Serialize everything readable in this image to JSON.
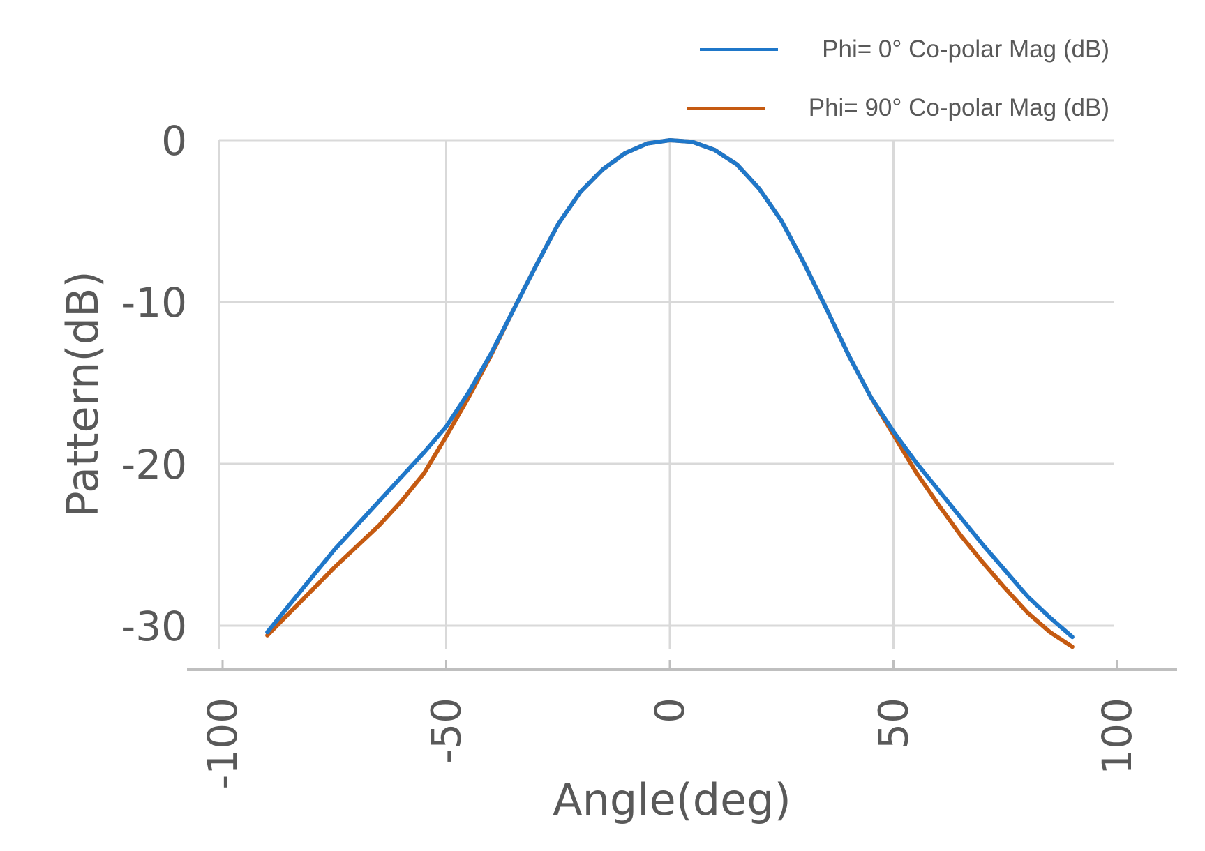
{
  "chart_data": {
    "type": "line",
    "title": "",
    "xlabel": "Angle(deg)",
    "ylabel": "Pattern(dB)",
    "x_ticks": [
      "-100",
      "-50",
      "0",
      "50",
      "100"
    ],
    "y_ticks": [
      "0",
      "-10",
      "-20",
      "-30"
    ],
    "xlim": [
      -100,
      100
    ],
    "ylim": [
      -30,
      0
    ],
    "grid": true,
    "legend_position": "top-right",
    "series": [
      {
        "name": "Phi= 0° Co-polar Mag (dB)",
        "color": "#1F77C9",
        "x": [
          -90,
          -85,
          -80,
          -75,
          -70,
          -65,
          -60,
          -55,
          -50,
          -45,
          -40,
          -35,
          -30,
          -25,
          -20,
          -15,
          -10,
          -5,
          0,
          5,
          10,
          15,
          20,
          25,
          30,
          35,
          40,
          45,
          50,
          55,
          60,
          65,
          70,
          75,
          80,
          85,
          90
        ],
        "y": [
          -30.4,
          -28.7,
          -27.0,
          -25.3,
          -23.8,
          -22.3,
          -20.8,
          -19.3,
          -17.7,
          -15.6,
          -13.2,
          -10.5,
          -7.8,
          -5.2,
          -3.2,
          -1.8,
          -0.8,
          -0.2,
          0.0,
          -0.1,
          -0.6,
          -1.5,
          -3.0,
          -5.0,
          -7.6,
          -10.4,
          -13.3,
          -15.9,
          -18.0,
          -19.9,
          -21.6,
          -23.3,
          -25.0,
          -26.6,
          -28.2,
          -29.5,
          -30.7
        ]
      },
      {
        "name": "Phi= 90° Co-polar Mag (dB)",
        "color": "#C55A11",
        "x": [
          -90,
          -85,
          -80,
          -75,
          -70,
          -65,
          -60,
          -55,
          -50,
          -45,
          -40,
          -35,
          -30,
          -25,
          -20,
          -15,
          -10,
          -5,
          0,
          5,
          10,
          15,
          20,
          25,
          30,
          35,
          40,
          45,
          50,
          55,
          60,
          65,
          70,
          75,
          80,
          85,
          90
        ],
        "y": [
          -30.6,
          -29.2,
          -27.8,
          -26.4,
          -25.1,
          -23.8,
          -22.3,
          -20.6,
          -18.3,
          -15.9,
          -13.3,
          -10.5,
          -7.8,
          -5.2,
          -3.2,
          -1.8,
          -0.8,
          -0.2,
          0.0,
          -0.1,
          -0.6,
          -1.5,
          -3.0,
          -5.0,
          -7.6,
          -10.4,
          -13.3,
          -15.9,
          -18.2,
          -20.5,
          -22.5,
          -24.4,
          -26.1,
          -27.7,
          -29.2,
          -30.4,
          -31.3
        ]
      }
    ]
  }
}
